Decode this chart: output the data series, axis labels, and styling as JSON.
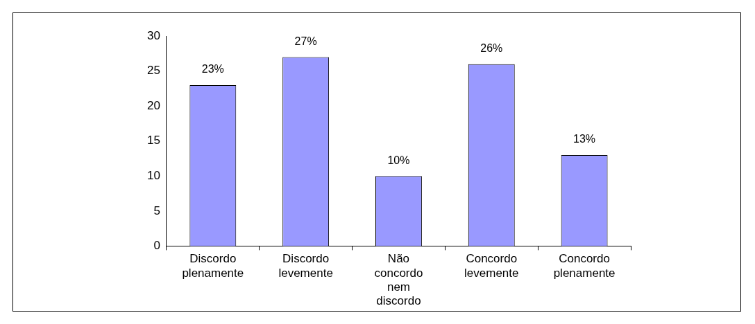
{
  "chart_data": {
    "type": "bar",
    "categories": [
      "Discordo plenamente",
      "Discordo levemente",
      "Não concordo nem discordo",
      "Concordo levemente",
      "Concordo plenamente"
    ],
    "values": [
      23,
      27,
      10,
      26,
      13
    ],
    "color": "#9999ff",
    "value_labels": [
      "23%",
      "27%",
      "10%",
      "26%",
      "13%"
    ],
    "ylim": [
      0,
      30
    ],
    "yticks": [
      0,
      5,
      10,
      15,
      20,
      25,
      30
    ],
    "grid": false,
    "legend": false
  }
}
